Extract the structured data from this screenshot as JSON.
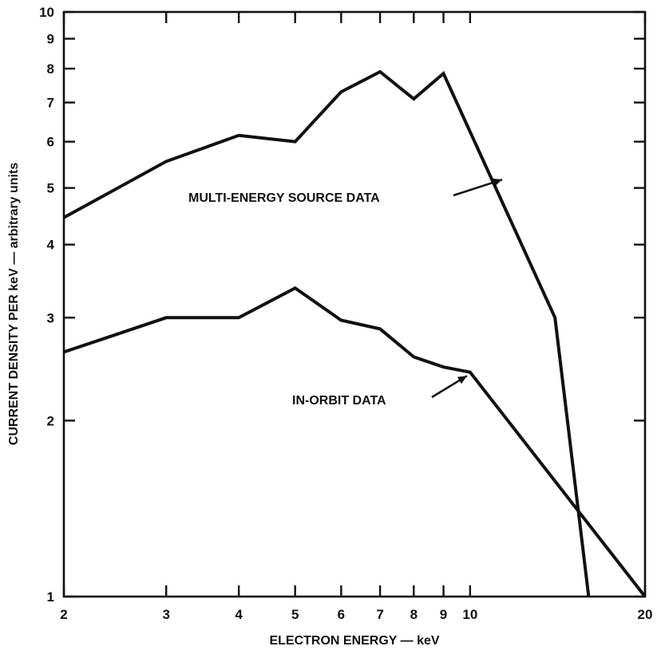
{
  "chart_data": {
    "type": "line",
    "xscale": "log",
    "yscale": "log",
    "xlabel": "ELECTRON ENERGY — keV",
    "ylabel": "CURRENT DENSITY PER keV — arbitrary units",
    "xlim": [
      2,
      20
    ],
    "ylim": [
      1,
      10
    ],
    "xticks": [
      2,
      3,
      4,
      5,
      6,
      7,
      8,
      9,
      10,
      20
    ],
    "xtick_labels": [
      "2",
      "3",
      "4",
      "5",
      "6",
      "7",
      "8",
      "9",
      "10",
      "20"
    ],
    "yticks": [
      1,
      2,
      3,
      4,
      5,
      6,
      7,
      8,
      9,
      10
    ],
    "ytick_labels": [
      "1",
      "2",
      "3",
      "4",
      "5",
      "6",
      "7",
      "8",
      "9",
      "10"
    ],
    "grid": false,
    "series": [
      {
        "name": "MULTI-ENERGY SOURCE DATA",
        "x": [
          2,
          3,
          4,
          5,
          6,
          7,
          8,
          9,
          14,
          16
        ],
        "y": [
          4.45,
          5.55,
          6.15,
          6.0,
          7.3,
          7.9,
          7.1,
          7.85,
          3.0,
          1.0
        ]
      },
      {
        "name": "IN-ORBIT DATA",
        "x": [
          2,
          3,
          4,
          5,
          6,
          7,
          8,
          9,
          10,
          20
        ],
        "y": [
          2.62,
          3.0,
          3.0,
          3.37,
          2.97,
          2.87,
          2.57,
          2.47,
          2.42,
          1.0
        ]
      }
    ],
    "annotations": [
      {
        "text": "MULTI-ENERGY SOURCE DATA",
        "points_to": [
          11.5,
          5.2
        ]
      },
      {
        "text": "IN-ORBIT DATA",
        "points_to": [
          10.0,
          2.4
        ]
      }
    ]
  }
}
